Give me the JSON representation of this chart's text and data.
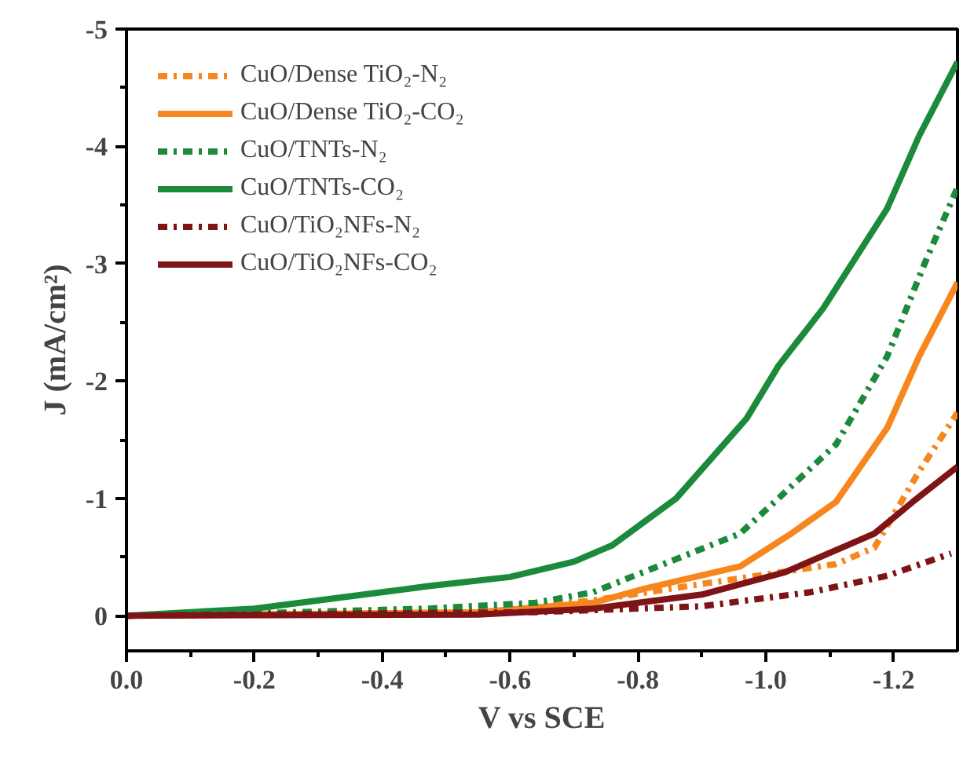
{
  "chart_data": {
    "type": "line",
    "xlabel": "V vs SCE",
    "ylabel": "J (mA/cm²)",
    "xlim": [
      0,
      -1.3
    ],
    "ylim": [
      0.3,
      -5
    ],
    "xticks": [
      {
        "value": 0,
        "label": "0.0"
      },
      {
        "value": -0.1,
        "label": null
      },
      -0.2,
      {
        "value": -0.3,
        "label": null
      },
      -0.4,
      {
        "value": -0.5,
        "label": null
      },
      -0.6,
      {
        "value": -0.7,
        "label": null
      },
      -0.8,
      {
        "value": -0.9,
        "label": null
      },
      {
        "value": -1,
        "label": "-1.0"
      },
      {
        "value": -1.1,
        "label": null
      },
      -1.2
    ],
    "yticks": [
      0,
      {
        "value": -0.5,
        "label": null
      },
      -1,
      {
        "value": -1.5,
        "label": null
      },
      -2,
      {
        "value": -2.5,
        "label": null
      },
      -3,
      {
        "value": -3.5,
        "label": null
      },
      -4,
      {
        "value": -4.5,
        "label": null
      },
      -5
    ],
    "grid": false,
    "legend": "top left",
    "marker": "none",
    "series": [
      {
        "name": "CuO/Dense TiO₂-N₂",
        "color": "#f7861e",
        "line_style": "dashdot",
        "x": [
          0,
          -0.55,
          -0.73,
          -0.9,
          -1.11,
          -1.17,
          -1.24,
          -1.3
        ],
        "values": [
          0,
          -0.03,
          -0.13,
          -0.27,
          -0.44,
          -0.58,
          -1.23,
          -1.73
        ]
      },
      {
        "name": "CuO/Dense TiO₂-CO₂",
        "color": "#f7861e",
        "line_style": "solid",
        "x": [
          0,
          -0.55,
          -0.73,
          -0.81,
          -0.96,
          -1.04,
          -1.11,
          -1.19,
          -1.24,
          -1.3
        ],
        "values": [
          0,
          -0.03,
          -0.11,
          -0.23,
          -0.42,
          -0.7,
          -0.97,
          -1.6,
          -2.21,
          -2.84
        ]
      },
      {
        "name": "CuO/TNTs-N₂",
        "color": "#1b8a3a",
        "line_style": "dashdot",
        "x": [
          0,
          -0.2,
          -0.47,
          -0.64,
          -0.73,
          -0.96,
          -1.02,
          -1.11,
          -1.19,
          -1.25,
          -1.3
        ],
        "values": [
          0,
          -0.02,
          -0.06,
          -0.11,
          -0.2,
          -0.7,
          -1.0,
          -1.46,
          -2.21,
          -3.02,
          -3.65
        ]
      },
      {
        "name": "CuO/TNTs-CO₂",
        "color": "#1b8a3a",
        "line_style": "solid",
        "x": [
          0,
          -0.2,
          -0.4,
          -0.47,
          -0.6,
          -0.7,
          -0.76,
          -0.86,
          -0.97,
          -1.02,
          -1.09,
          -1.19,
          -1.24,
          -1.3
        ],
        "values": [
          0,
          -0.06,
          -0.2,
          -0.25,
          -0.33,
          -0.46,
          -0.6,
          -1.0,
          -1.68,
          -2.13,
          -2.62,
          -3.47,
          -4.09,
          -4.72
        ]
      },
      {
        "name": "CuO/TiO₂NFs-N₂",
        "color": "#7f1416",
        "line_style": "dashdot",
        "x": [
          0,
          -0.64,
          -0.9,
          -1.07,
          -1.19,
          -1.29
        ],
        "values": [
          0,
          -0.03,
          -0.08,
          -0.2,
          -0.34,
          -0.53
        ]
      },
      {
        "name": "CuO/TiO₂NFs-CO₂",
        "color": "#7f1416",
        "line_style": "solid",
        "x": [
          0,
          -0.55,
          -0.73,
          -0.9,
          -1.03,
          -1.17,
          -1.23,
          -1.3
        ],
        "values": [
          0,
          -0.01,
          -0.06,
          -0.18,
          -0.37,
          -0.7,
          -0.97,
          -1.27
        ]
      }
    ]
  }
}
